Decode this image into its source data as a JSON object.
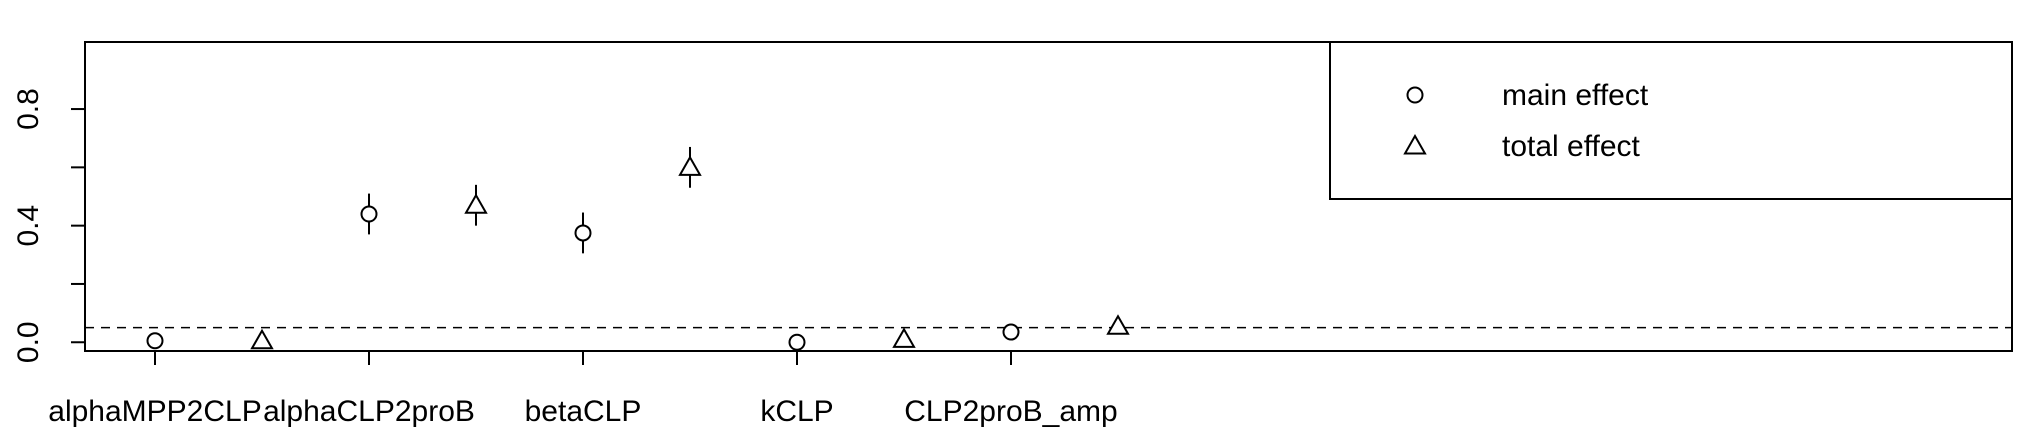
{
  "chart_data": {
    "type": "scatter",
    "categories": [
      "alphaMPP2CLP",
      "alphaCLP2proB",
      "betaCLP",
      "kCLP",
      "CLP2proB_amp"
    ],
    "series": [
      {
        "name": "main effect",
        "marker": "circle",
        "values": [
          0.005,
          0.44,
          0.375,
          0.0,
          0.035
        ],
        "ci_lower": [
          0.005,
          0.37,
          0.305,
          0.0,
          0.035
        ],
        "ci_upper": [
          0.005,
          0.51,
          0.445,
          0.0,
          0.035
        ]
      },
      {
        "name": "total effect",
        "marker": "triangle",
        "values": [
          0.005,
          0.47,
          0.6,
          0.01,
          0.055
        ],
        "ci_lower": [
          0.005,
          0.4,
          0.53,
          0.01,
          0.055
        ],
        "ci_upper": [
          0.005,
          0.54,
          0.67,
          0.01,
          0.055
        ]
      }
    ],
    "y_ticks": [
      0.0,
      0.4,
      0.8
    ],
    "y_ticks_minor": [
      0.2,
      0.6
    ],
    "ylim": [
      -0.03,
      1.03
    ],
    "reference_line": 0.05,
    "xlabel": "",
    "ylabel": "",
    "title": "",
    "grid": false,
    "legend_position": "top-right"
  }
}
